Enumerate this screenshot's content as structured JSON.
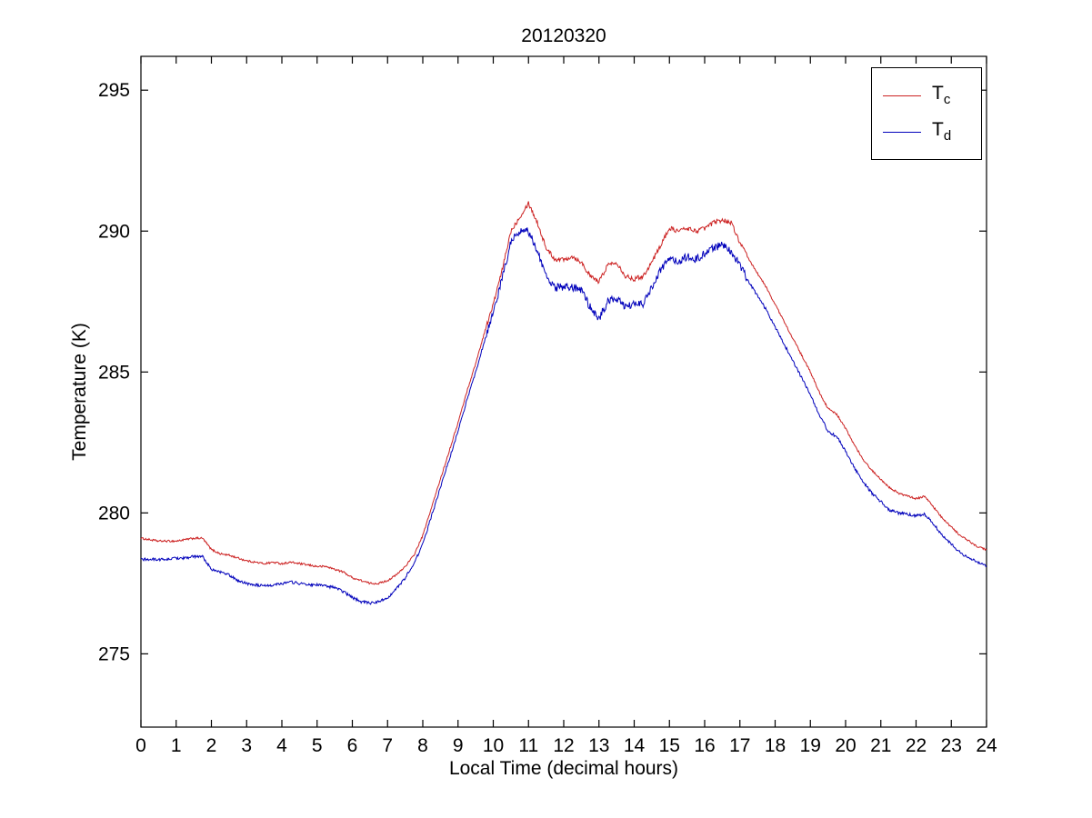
{
  "chart_data": {
    "type": "line",
    "title": "20120320",
    "xlabel": "Local Time (decimal hours)",
    "ylabel": "Temperature (K)",
    "xlim": [
      0,
      24
    ],
    "ylim": [
      272.4,
      296.2
    ],
    "xticks": [
      0,
      1,
      2,
      3,
      4,
      5,
      6,
      7,
      8,
      9,
      10,
      11,
      12,
      13,
      14,
      15,
      16,
      17,
      18,
      19,
      20,
      21,
      22,
      23,
      24
    ],
    "yticks": [
      275,
      280,
      285,
      290,
      295
    ],
    "grid": false,
    "legend_position": "top-right",
    "x": {
      "start": 0,
      "step": 0.25
    },
    "series": [
      {
        "name": "Tc",
        "label_main": "T",
        "label_sub": "c",
        "color": "#cc2222",
        "noise_base": 0.035,
        "noise_active": 0.08,
        "noise_range": [
          9.8,
          17.2
        ],
        "values": [
          279.1,
          279.05,
          279.0,
          279.0,
          279.0,
          279.05,
          279.1,
          279.1,
          278.7,
          278.55,
          278.5,
          278.4,
          278.3,
          278.25,
          278.2,
          278.25,
          278.2,
          278.25,
          278.2,
          278.15,
          278.1,
          278.1,
          278.0,
          277.9,
          277.7,
          277.6,
          277.5,
          277.5,
          277.6,
          277.8,
          278.1,
          278.5,
          279.2,
          280.2,
          281.2,
          282.2,
          283.2,
          284.3,
          285.3,
          286.4,
          287.4,
          288.6,
          290.0,
          290.5,
          291.0,
          290.3,
          289.4,
          289.0,
          289.0,
          289.1,
          288.9,
          288.4,
          288.2,
          288.8,
          288.9,
          288.4,
          288.3,
          288.4,
          288.9,
          289.5,
          290.1,
          290.0,
          290.1,
          290.0,
          290.1,
          290.3,
          290.4,
          290.3,
          289.6,
          289.0,
          288.5,
          288.0,
          287.4,
          286.8,
          286.2,
          285.6,
          285.0,
          284.3,
          283.7,
          283.5,
          283.0,
          282.4,
          281.9,
          281.5,
          281.2,
          280.9,
          280.7,
          280.6,
          280.5,
          280.6,
          280.2,
          279.8,
          279.5,
          279.2,
          279.0,
          278.8,
          278.7
        ]
      },
      {
        "name": "Td",
        "label_main": "T",
        "label_sub": "d",
        "color": "#0000bb",
        "noise_base": 0.05,
        "noise_active": 0.14,
        "noise_range": [
          9.8,
          17.2
        ],
        "values": [
          278.35,
          278.35,
          278.35,
          278.35,
          278.4,
          278.4,
          278.45,
          278.45,
          278.0,
          277.9,
          277.8,
          277.6,
          277.5,
          277.45,
          277.4,
          277.45,
          277.5,
          277.55,
          277.5,
          277.45,
          277.45,
          277.4,
          277.35,
          277.2,
          277.0,
          276.85,
          276.8,
          276.85,
          277.0,
          277.3,
          277.7,
          278.2,
          278.9,
          279.9,
          280.9,
          281.9,
          282.9,
          284.0,
          285.0,
          286.1,
          287.1,
          288.3,
          289.6,
          290.0,
          290.0,
          289.3,
          288.4,
          288.0,
          288.0,
          288.0,
          287.9,
          287.3,
          286.9,
          287.5,
          287.6,
          287.3,
          287.4,
          287.4,
          288.0,
          288.6,
          289.0,
          288.9,
          289.1,
          289.0,
          289.2,
          289.4,
          289.5,
          289.3,
          288.8,
          288.2,
          287.7,
          287.2,
          286.6,
          286.0,
          285.4,
          284.8,
          284.2,
          283.5,
          282.9,
          282.7,
          282.2,
          281.6,
          281.1,
          280.7,
          280.4,
          280.1,
          280.0,
          279.95,
          279.9,
          279.95,
          279.6,
          279.2,
          278.9,
          278.6,
          278.4,
          278.25,
          278.1
        ]
      }
    ]
  }
}
